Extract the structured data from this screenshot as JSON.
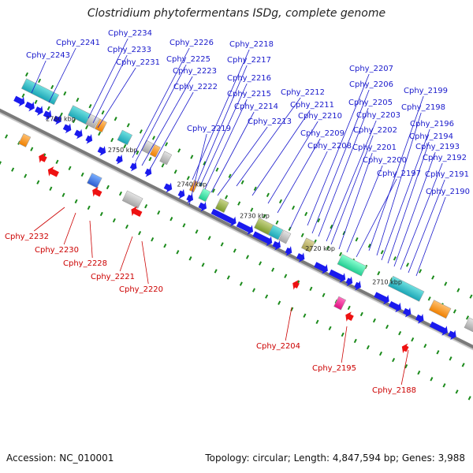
{
  "title": "Clostridium phytofermentans ISDg, complete genome",
  "footer": {
    "accession": "Accession: NC_010001",
    "summary": "Topology: circular; Length: 4,847,594 bp; Genes: 3,988"
  },
  "colors": {
    "forward_label": "#1a1acc",
    "reverse_label": "#cc0000",
    "forward_gene": "#1a1aee",
    "reverse_gene": "#ee1111",
    "tick": "#1a8a1a",
    "axis": "#7a7a7a"
  },
  "scale_labels": [
    "2760 kbp",
    "2750 kbp",
    "2740 kbp",
    "2730 kbp",
    "2720 kbp",
    "2710 kbp"
  ],
  "forward_labels": [
    "Cphy_2243",
    "Cphy_2241",
    "Cphy_2234",
    "Cphy_2233",
    "Cphy_2231",
    "Cphy_2226",
    "Cphy_2225",
    "Cphy_2223",
    "Cphy_2222",
    "Cphy_2219",
    "Cphy_2218",
    "Cphy_2217",
    "Cphy_2216",
    "Cphy_2215",
    "Cphy_2214",
    "Cphy_2213",
    "Cphy_2212",
    "Cphy_2211",
    "Cphy_2210",
    "Cphy_2209",
    "Cphy_2208",
    "Cphy_2207",
    "Cphy_2206",
    "Cphy_2205",
    "Cphy_2203",
    "Cphy_2202",
    "Cphy_2201",
    "Cphy_2200",
    "Cphy_2197",
    "Cphy_2199",
    "Cphy_2198",
    "Cphy_2196",
    "Cphy_2194",
    "Cphy_2193",
    "Cphy_2192",
    "Cphy_2191",
    "Cphy_2190"
  ],
  "reverse_labels": [
    "Cphy_2232",
    "Cphy_2230",
    "Cphy_2228",
    "Cphy_2221",
    "Cphy_2220",
    "Cphy_2204",
    "Cphy_2195",
    "Cphy_2188"
  ]
}
